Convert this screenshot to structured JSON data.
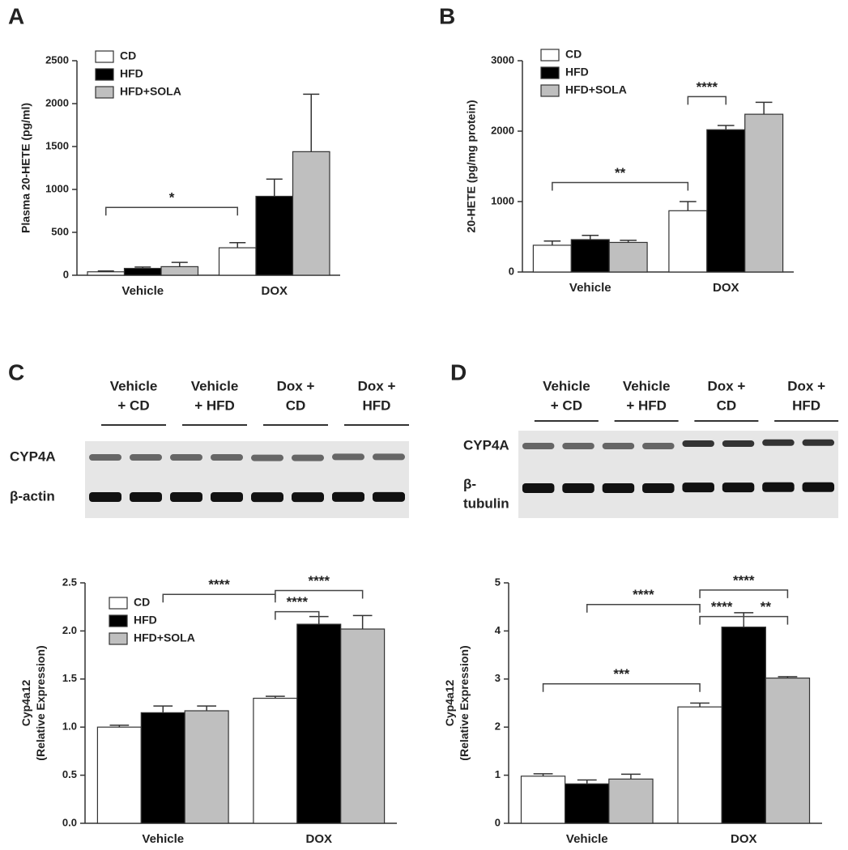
{
  "chart_data": [
    {
      "type": "bar",
      "panel": "A",
      "ylabel": "Plasma 20-HETE (pg/ml)",
      "categories": [
        "Vehicle",
        "DOX"
      ],
      "series": [
        {
          "name": "CD",
          "color": "#ffffff",
          "values": [
            40,
            320
          ],
          "errors": [
            10,
            60
          ]
        },
        {
          "name": "HFD",
          "color": "#000000",
          "values": [
            80,
            920
          ],
          "errors": [
            15,
            200
          ]
        },
        {
          "name": "HFD+SOLA",
          "color": "#bfbfbf",
          "values": [
            100,
            1440
          ],
          "errors": [
            50,
            670
          ]
        }
      ],
      "ylim": [
        0,
        2500
      ],
      "yticks": [
        0,
        500,
        1000,
        1500,
        2000,
        2500
      ],
      "legend": "upper left",
      "annotations": [
        {
          "text": "*",
          "y": 790,
          "from": [
            0,
            0
          ],
          "to": [
            1,
            0
          ]
        }
      ]
    },
    {
      "type": "bar",
      "panel": "B",
      "ylabel": "20-HETE (pg/mg protein)",
      "categories": [
        "Vehicle",
        "DOX"
      ],
      "series": [
        {
          "name": "CD",
          "color": "#ffffff",
          "values": [
            380,
            870
          ],
          "errors": [
            60,
            130
          ]
        },
        {
          "name": "HFD",
          "color": "#000000",
          "values": [
            460,
            2020
          ],
          "errors": [
            60,
            60
          ]
        },
        {
          "name": "HFD+SOLA",
          "color": "#bfbfbf",
          "values": [
            420,
            2240
          ],
          "errors": [
            30,
            170
          ]
        }
      ],
      "ylim": [
        0,
        3000
      ],
      "yticks": [
        0,
        1000,
        2000,
        3000
      ],
      "legend": "upper left",
      "annotations": [
        {
          "text": "**",
          "y": 1270,
          "from": [
            0,
            0
          ],
          "to": [
            1,
            0
          ]
        },
        {
          "text": "****",
          "y": 2490,
          "from": [
            1,
            0
          ],
          "to": [
            1,
            1
          ]
        }
      ]
    },
    {
      "type": "bar",
      "panel": "C",
      "ylabel": [
        "Cyp4a12",
        "(Relative Expression)"
      ],
      "categories": [
        "Vehicle",
        "DOX"
      ],
      "series": [
        {
          "name": "CD",
          "color": "#ffffff",
          "values": [
            1.0,
            1.3
          ],
          "errors": [
            0.02,
            0.02
          ]
        },
        {
          "name": "HFD",
          "color": "#000000",
          "values": [
            1.15,
            2.07
          ],
          "errors": [
            0.07,
            0.08
          ]
        },
        {
          "name": "HFD+SOLA",
          "color": "#bfbfbf",
          "values": [
            1.17,
            2.02
          ],
          "errors": [
            0.05,
            0.14
          ]
        }
      ],
      "ylim": [
        0,
        2.5
      ],
      "yticks": [
        {
          "value": 0,
          "label": "0.0"
        },
        0.5,
        {
          "value": 1,
          "label": "1.0"
        },
        1.5,
        {
          "value": 2,
          "label": "2.0"
        },
        2.5
      ],
      "legend": "upper left",
      "annotations": [
        {
          "text": "****",
          "y": 2.38,
          "from": [
            0,
            1
          ],
          "to": [
            1,
            0
          ]
        },
        {
          "text": "****",
          "y": 2.42,
          "from": [
            1,
            0
          ],
          "to": [
            1,
            2
          ]
        },
        {
          "text": "****",
          "y": 2.2,
          "from": [
            1,
            0
          ],
          "to": [
            1,
            1
          ]
        }
      ]
    },
    {
      "type": "bar",
      "panel": "D",
      "ylabel": [
        "Cyp4a12",
        "(Relative Expression)"
      ],
      "categories": [
        "Vehicle",
        "DOX"
      ],
      "series": [
        {
          "name": "CD",
          "color": "#ffffff",
          "values": [
            0.98,
            2.42
          ],
          "errors": [
            0.05,
            0.08
          ]
        },
        {
          "name": "HFD",
          "color": "#000000",
          "values": [
            0.82,
            4.08
          ],
          "errors": [
            0.08,
            0.3
          ]
        },
        {
          "name": "HFD+SOLA",
          "color": "#bfbfbf",
          "values": [
            0.92,
            3.02
          ],
          "errors": [
            0.1,
            0.03
          ]
        }
      ],
      "ylim": [
        0,
        5
      ],
      "yticks": [
        0,
        1,
        2,
        3,
        4,
        5
      ],
      "annotations": [
        {
          "text": "***",
          "y": 2.9,
          "from": [
            0,
            0
          ],
          "to": [
            1,
            0
          ]
        },
        {
          "text": "****",
          "y": 4.55,
          "from": [
            0,
            1
          ],
          "to": [
            1,
            0
          ]
        },
        {
          "text": "****",
          "y": 4.85,
          "from": [
            1,
            0
          ],
          "to": [
            1,
            2
          ]
        },
        {
          "text": "****",
          "y": 4.3,
          "from": [
            1,
            0
          ],
          "to": [
            1,
            1
          ]
        },
        {
          "text": "**",
          "y": 4.3,
          "from": [
            1,
            1
          ],
          "to": [
            1,
            2
          ]
        }
      ]
    }
  ],
  "blots": [
    {
      "lanes": [
        [
          "Vehicle",
          "+ CD"
        ],
        [
          "Vehicle",
          "+ HFD"
        ],
        [
          "Dox +",
          "CD"
        ],
        [
          "Dox +",
          "HFD"
        ]
      ],
      "rows": [
        [
          "CYP4A"
        ],
        [
          "β-actin"
        ]
      ]
    },
    {
      "lanes": [
        [
          "Vehicle",
          "+ CD"
        ],
        [
          "Vehicle",
          "+ HFD"
        ],
        [
          "Dox +",
          "CD"
        ],
        [
          "Dox +",
          "HFD"
        ]
      ],
      "rows": [
        [
          "CYP4A"
        ],
        [
          "β-",
          "tubulin"
        ]
      ]
    }
  ]
}
